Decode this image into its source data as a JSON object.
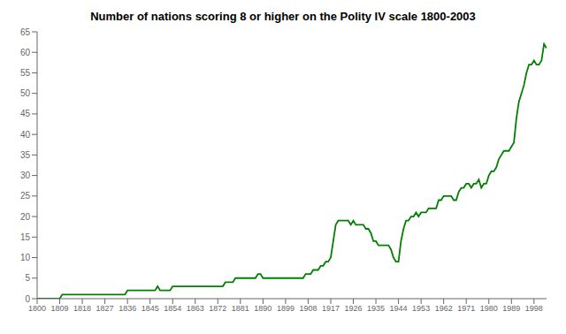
{
  "chart_data": {
    "type": "line",
    "title": "Number of nations scoring 8 or higher on the Polity IV scale 1800-2003",
    "color": "#008000",
    "grid": false,
    "xlim": [
      1800,
      2003
    ],
    "ylim": [
      0,
      65
    ],
    "xticks": [
      1800,
      1809,
      1818,
      1827,
      1836,
      1845,
      1854,
      1863,
      1872,
      1881,
      1890,
      1899,
      1908,
      1917,
      1926,
      1935,
      1944,
      1953,
      1962,
      1971,
      1980,
      1989,
      1998
    ],
    "yticks": [
      0,
      5,
      10,
      15,
      20,
      25,
      30,
      35,
      40,
      45,
      50,
      55,
      60,
      65
    ],
    "x": [
      1800,
      1801,
      1802,
      1803,
      1804,
      1805,
      1806,
      1807,
      1808,
      1809,
      1810,
      1811,
      1812,
      1813,
      1814,
      1815,
      1816,
      1817,
      1818,
      1819,
      1820,
      1821,
      1822,
      1823,
      1824,
      1825,
      1826,
      1827,
      1828,
      1829,
      1830,
      1831,
      1832,
      1833,
      1834,
      1835,
      1836,
      1837,
      1838,
      1839,
      1840,
      1841,
      1842,
      1843,
      1844,
      1845,
      1846,
      1847,
      1848,
      1849,
      1850,
      1851,
      1852,
      1853,
      1854,
      1855,
      1856,
      1857,
      1858,
      1859,
      1860,
      1861,
      1862,
      1863,
      1864,
      1865,
      1866,
      1867,
      1868,
      1869,
      1870,
      1871,
      1872,
      1873,
      1874,
      1875,
      1876,
      1877,
      1878,
      1879,
      1880,
      1881,
      1882,
      1883,
      1884,
      1885,
      1886,
      1887,
      1888,
      1889,
      1890,
      1891,
      1892,
      1893,
      1894,
      1895,
      1896,
      1897,
      1898,
      1899,
      1900,
      1901,
      1902,
      1903,
      1904,
      1905,
      1906,
      1907,
      1908,
      1909,
      1910,
      1911,
      1912,
      1913,
      1914,
      1915,
      1916,
      1917,
      1918,
      1919,
      1920,
      1921,
      1922,
      1923,
      1924,
      1925,
      1926,
      1927,
      1928,
      1929,
      1930,
      1931,
      1932,
      1933,
      1934,
      1935,
      1936,
      1937,
      1938,
      1939,
      1940,
      1941,
      1942,
      1943,
      1944,
      1945,
      1946,
      1947,
      1948,
      1949,
      1950,
      1951,
      1952,
      1953,
      1954,
      1955,
      1956,
      1957,
      1958,
      1959,
      1960,
      1961,
      1962,
      1963,
      1964,
      1965,
      1966,
      1967,
      1968,
      1969,
      1970,
      1971,
      1972,
      1973,
      1974,
      1975,
      1976,
      1977,
      1978,
      1979,
      1980,
      1981,
      1982,
      1983,
      1984,
      1985,
      1986,
      1987,
      1988,
      1989,
      1990,
      1991,
      1992,
      1993,
      1994,
      1995,
      1996,
      1997,
      1998,
      1999,
      2000,
      2001,
      2002,
      2003
    ],
    "values": [
      0,
      0,
      0,
      0,
      0,
      0,
      0,
      0,
      0,
      0,
      1,
      1,
      1,
      1,
      1,
      1,
      1,
      1,
      1,
      1,
      1,
      1,
      1,
      1,
      1,
      1,
      1,
      1,
      1,
      1,
      1,
      1,
      1,
      1,
      1,
      1,
      2,
      2,
      2,
      2,
      2,
      2,
      2,
      2,
      2,
      2,
      2,
      2,
      3,
      2,
      2,
      2,
      2,
      2,
      3,
      3,
      3,
      3,
      3,
      3,
      3,
      3,
      3,
      3,
      3,
      3,
      3,
      3,
      3,
      3,
      3,
      3,
      3,
      3,
      3,
      4,
      4,
      4,
      4,
      5,
      5,
      5,
      5,
      5,
      5,
      5,
      5,
      5,
      6,
      6,
      5,
      5,
      5,
      5,
      5,
      5,
      5,
      5,
      5,
      5,
      5,
      5,
      5,
      5,
      5,
      5,
      5,
      6,
      6,
      6,
      7,
      7,
      7,
      8,
      8,
      9,
      9,
      10,
      14,
      18,
      19,
      19,
      19,
      19,
      19,
      18,
      19,
      18,
      18,
      18,
      18,
      17,
      17,
      16,
      14,
      14,
      13,
      13,
      13,
      13,
      13,
      12,
      10,
      9,
      9,
      14,
      17,
      19,
      19,
      20,
      20,
      21,
      20,
      21,
      21,
      21,
      22,
      22,
      22,
      22,
      24,
      24,
      25,
      25,
      25,
      25,
      24,
      24,
      26,
      27,
      27,
      28,
      28,
      27,
      28,
      28,
      29,
      27,
      28,
      28,
      30,
      31,
      31,
      32,
      34,
      35,
      36,
      36,
      36,
      37,
      38,
      44,
      48,
      50,
      52,
      55,
      57,
      57,
      58,
      57,
      57,
      58,
      62,
      61
    ]
  }
}
